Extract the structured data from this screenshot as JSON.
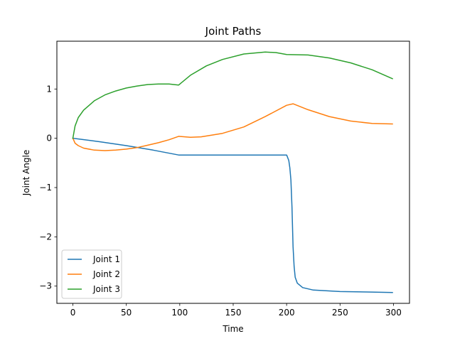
{
  "chart_data": {
    "type": "line",
    "title": "Joint Paths",
    "xlabel": "Time",
    "ylabel": "Joint Angle",
    "xlim": [
      -15,
      315
    ],
    "ylim": [
      -3.35,
      1.97
    ],
    "xticks": [
      0,
      50,
      100,
      150,
      200,
      250,
      300
    ],
    "yticks": [
      -3,
      -2,
      -1,
      0,
      1
    ],
    "grid": false,
    "legend_position": "lower-left",
    "series": [
      {
        "name": "Joint 1",
        "color": "#1f77b4",
        "x": [
          0,
          25,
          50,
          75,
          99,
          120,
          150,
          180,
          200,
          202,
          203,
          204,
          205,
          206,
          207,
          208,
          210,
          215,
          225,
          250,
          275,
          299
        ],
        "y": [
          0,
          -0.07,
          -0.15,
          -0.24,
          -0.34,
          -0.34,
          -0.34,
          -0.34,
          -0.34,
          -0.45,
          -0.6,
          -0.85,
          -1.4,
          -2.2,
          -2.6,
          -2.82,
          -2.94,
          -3.03,
          -3.08,
          -3.11,
          -3.12,
          -3.13
        ]
      },
      {
        "name": "Joint 2",
        "color": "#ff7f0e",
        "x": [
          0,
          2,
          5,
          10,
          20,
          30,
          40,
          50,
          60,
          70,
          80,
          90,
          99,
          110,
          120,
          140,
          160,
          180,
          200,
          206,
          220,
          240,
          260,
          280,
          299
        ],
        "y": [
          0,
          -0.1,
          -0.15,
          -0.2,
          -0.24,
          -0.25,
          -0.24,
          -0.22,
          -0.19,
          -0.14,
          -0.09,
          -0.03,
          0.04,
          0.02,
          0.03,
          0.1,
          0.23,
          0.44,
          0.67,
          0.7,
          0.58,
          0.44,
          0.35,
          0.3,
          0.29
        ]
      },
      {
        "name": "Joint 3",
        "color": "#2ca02c",
        "x": [
          0,
          2,
          5,
          10,
          20,
          30,
          40,
          50,
          60,
          70,
          80,
          90,
          99,
          110,
          125,
          140,
          160,
          180,
          190,
          200,
          220,
          240,
          260,
          280,
          299
        ],
        "y": [
          0,
          0.25,
          0.42,
          0.57,
          0.76,
          0.88,
          0.96,
          1.02,
          1.06,
          1.09,
          1.1,
          1.1,
          1.08,
          1.28,
          1.47,
          1.6,
          1.71,
          1.75,
          1.74,
          1.7,
          1.69,
          1.63,
          1.53,
          1.39,
          1.21
        ]
      }
    ]
  }
}
